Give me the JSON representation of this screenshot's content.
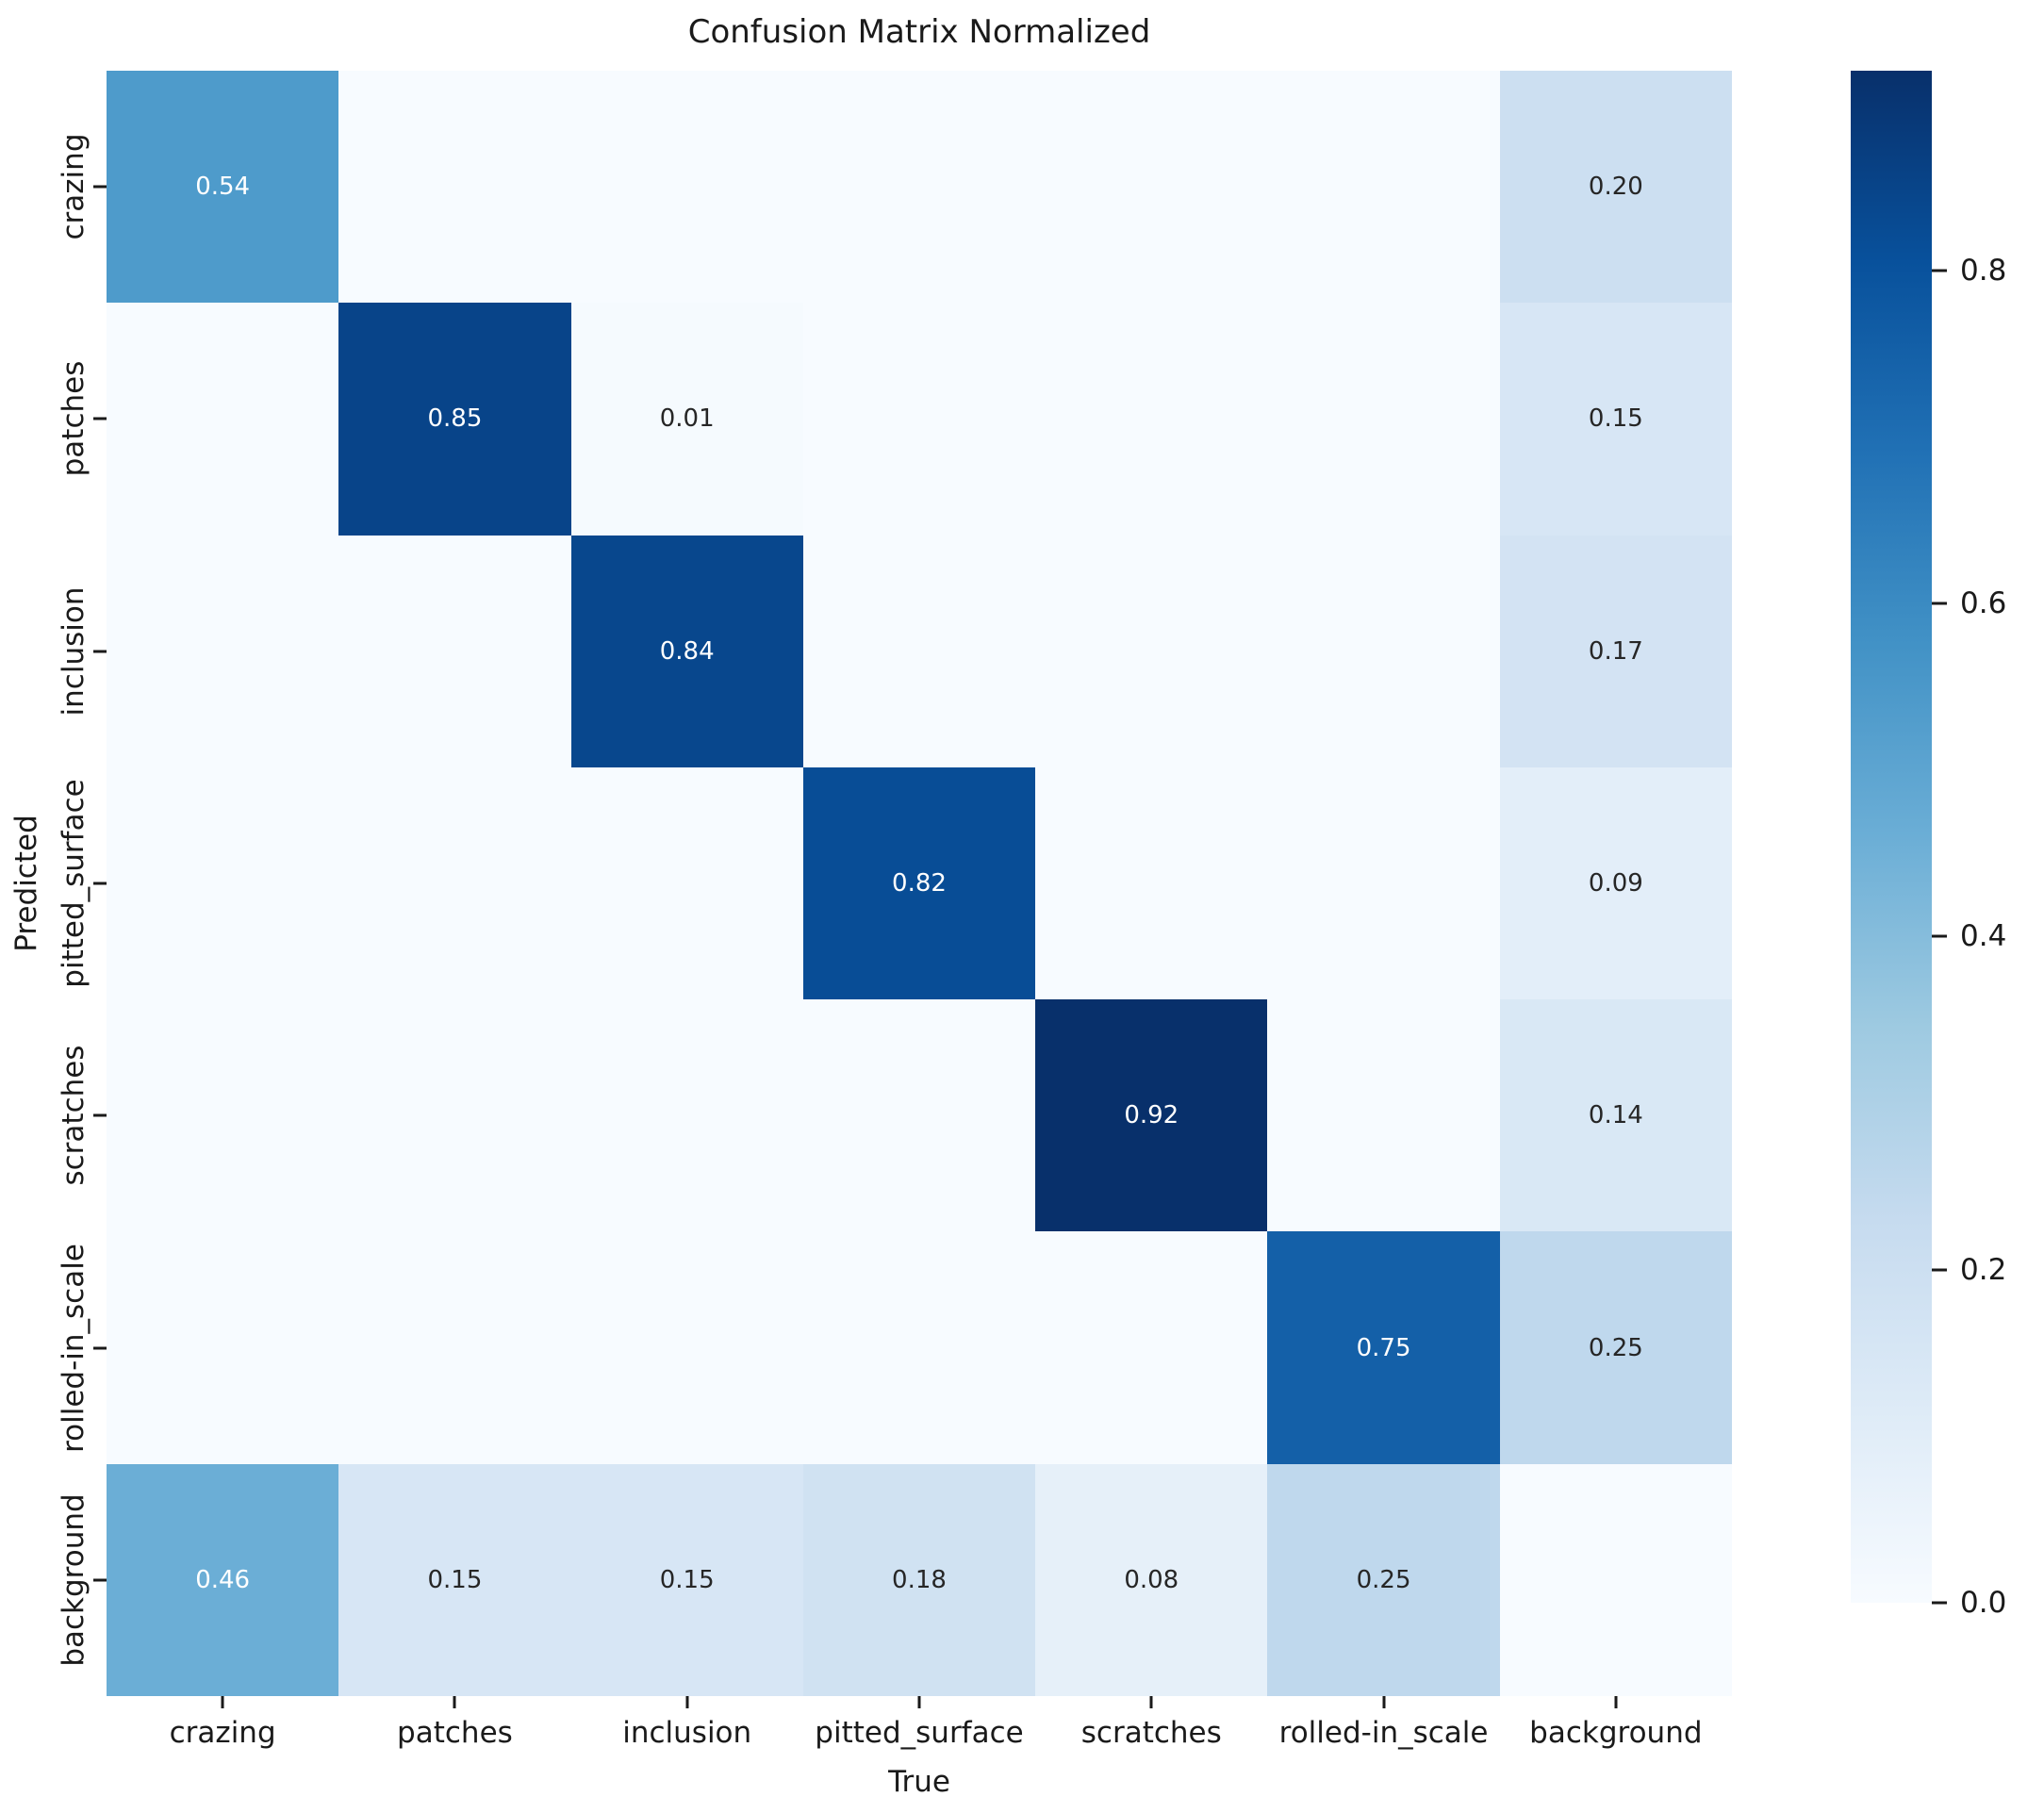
{
  "figure": {
    "title": "Confusion Matrix Normalized",
    "xlabel": "True",
    "ylabel": "Predicted"
  },
  "chart_data": {
    "type": "heatmap",
    "title": "Confusion Matrix Normalized",
    "xlabel": "True",
    "ylabel": "Predicted",
    "x_categories": [
      "crazing",
      "patches",
      "inclusion",
      "pitted_surface",
      "scratches",
      "rolled-in_scale",
      "background"
    ],
    "y_categories": [
      "crazing",
      "patches",
      "inclusion",
      "pitted_surface",
      "scratches",
      "rolled-in_scale",
      "background"
    ],
    "matrix": [
      [
        0.54,
        0.0,
        0.0,
        0.0,
        0.0,
        0.0,
        0.2
      ],
      [
        0.0,
        0.85,
        0.01,
        0.0,
        0.0,
        0.0,
        0.15
      ],
      [
        0.0,
        0.0,
        0.84,
        0.0,
        0.0,
        0.0,
        0.17
      ],
      [
        0.0,
        0.0,
        0.0,
        0.82,
        0.0,
        0.0,
        0.09
      ],
      [
        0.0,
        0.0,
        0.0,
        0.0,
        0.92,
        0.0,
        0.14
      ],
      [
        0.0,
        0.0,
        0.0,
        0.0,
        0.0,
        0.75,
        0.25
      ],
      [
        0.46,
        0.15,
        0.15,
        0.18,
        0.08,
        0.25,
        0.0
      ]
    ],
    "vmin": 0.0,
    "vmax": 0.92,
    "annotation_decimals": 2,
    "hide_zero_annotations": true,
    "colormap": "Blues",
    "colormap_stops": [
      {
        "pos": 0.0,
        "color": "#f7fbff"
      },
      {
        "pos": 0.125,
        "color": "#deebf7"
      },
      {
        "pos": 0.25,
        "color": "#c6dbef"
      },
      {
        "pos": 0.375,
        "color": "#9ecae1"
      },
      {
        "pos": 0.5,
        "color": "#6baed6"
      },
      {
        "pos": 0.625,
        "color": "#4292c6"
      },
      {
        "pos": 0.75,
        "color": "#2171b5"
      },
      {
        "pos": 0.875,
        "color": "#08519c"
      },
      {
        "pos": 1.0,
        "color": "#08306b"
      }
    ],
    "colorbar_ticks": [
      {
        "value": 0.8,
        "label": "0.8"
      },
      {
        "value": 0.6,
        "label": "0.6"
      },
      {
        "value": 0.4,
        "label": "0.4"
      },
      {
        "value": 0.2,
        "label": "0.2"
      },
      {
        "value": 0.0,
        "label": "0.0"
      }
    ],
    "colorbar_position": "right",
    "grid": false,
    "colors": {
      "annotation_dark": "#262626",
      "annotation_light": "#ffffff",
      "axis_text": "#1a1a1a",
      "background": "#ffffff"
    }
  }
}
